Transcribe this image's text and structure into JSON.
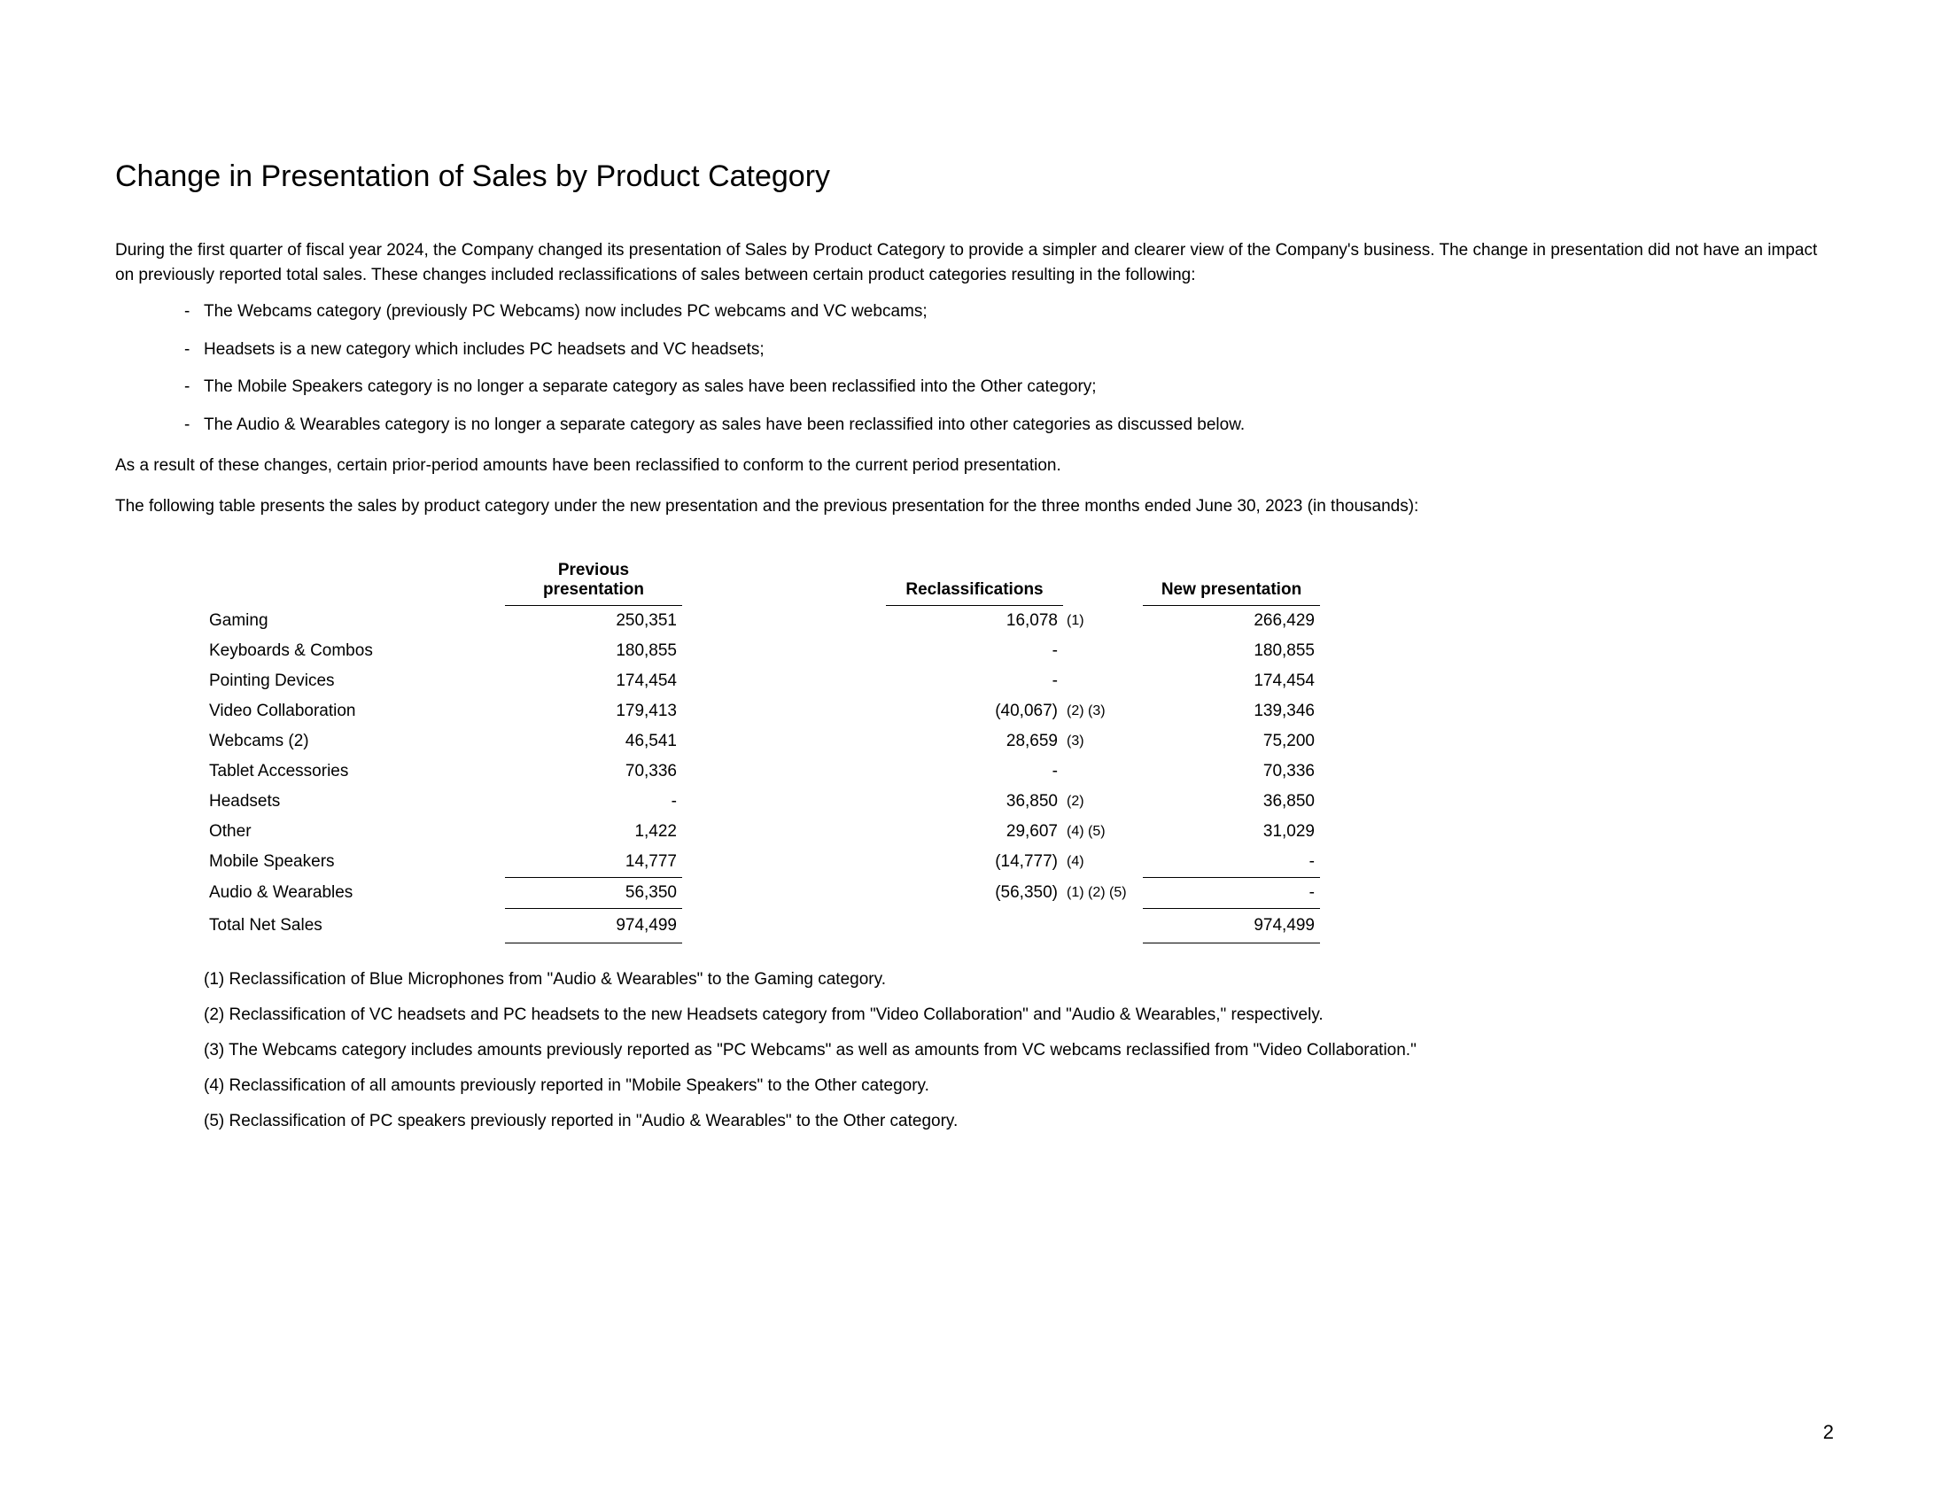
{
  "title": "Change in Presentation of Sales by Product Category",
  "intro": "During the first quarter of fiscal year 2024, the Company changed its presentation of Sales by Product Category to provide a simpler and clearer view of the Company's business. The change in presentation did not have an impact on previously reported total sales. These changes included reclassifications of sales between certain product categories resulting in the following:",
  "bullets": {
    "b1": "The Webcams category (previously PC Webcams) now includes PC webcams and VC webcams;",
    "b2": "Headsets is a new category which includes PC headsets and VC headsets;",
    "b3": "The Mobile Speakers category is no longer a separate category as sales have been reclassified into the Other category;",
    "b4": "The Audio & Wearables category is no longer a separate category as sales have been reclassified into other categories as discussed below."
  },
  "para_result": "As a result of these changes, certain prior-period amounts have been reclassified to conform to the current period presentation.",
  "para_table_intro": "The following table presents the sales by product category under the new presentation and the previous presentation for the three months ended June 30, 2023 (in thousands):",
  "table": {
    "headers": {
      "prev": "Previous presentation",
      "reclass": "Reclassifications",
      "new": "New presentation"
    },
    "rows": {
      "r0": {
        "label": "Gaming",
        "prev": "250,351",
        "reclass": "16,078",
        "refs": "(1)",
        "new": "266,429"
      },
      "r1": {
        "label": "Keyboards & Combos",
        "prev": "180,855",
        "reclass": "-",
        "refs": "",
        "new": "180,855"
      },
      "r2": {
        "label": "Pointing Devices",
        "prev": "174,454",
        "reclass": "-",
        "refs": "",
        "new": "174,454"
      },
      "r3": {
        "label": "Video Collaboration",
        "prev": "179,413",
        "reclass": "(40,067)",
        "refs": "(2) (3)",
        "new": "139,346"
      },
      "r4": {
        "label": "Webcams (2)",
        "prev": "46,541",
        "reclass": "28,659",
        "refs": "(3)",
        "new": "75,200"
      },
      "r5": {
        "label": "Tablet Accessories",
        "prev": "70,336",
        "reclass": "-",
        "refs": "",
        "new": "70,336"
      },
      "r6": {
        "label": "Headsets",
        "prev": "-",
        "reclass": "36,850",
        "refs": "(2)",
        "new": "36,850"
      },
      "r7": {
        "label": "Other",
        "prev": "1,422",
        "reclass": "29,607",
        "refs": "(4) (5)",
        "new": "31,029"
      },
      "r8": {
        "label": "Mobile Speakers",
        "prev": "14,777",
        "reclass": "(14,777)",
        "refs": "(4)",
        "new": "-"
      },
      "r9": {
        "label": "Audio & Wearables",
        "prev": "56,350",
        "reclass": "(56,350)",
        "refs": "(1) (2) (5)",
        "new": "-"
      },
      "total": {
        "label": "Total Net Sales",
        "prev": "974,499",
        "reclass": "",
        "refs": "",
        "new": "974,499"
      }
    }
  },
  "footnotes": {
    "f1": "(1) Reclassification of Blue Microphones from \"Audio & Wearables\" to the Gaming category.",
    "f2": "(2) Reclassification of VC headsets and PC headsets to the new Headsets category from \"Video Collaboration\" and \"Audio & Wearables,\" respectively.",
    "f3": "(3) The Webcams category includes amounts previously reported as \"PC Webcams\" as well as amounts from VC webcams reclassified from \"Video Collaboration.\"",
    "f4": "(4) Reclassification of all amounts previously reported in \"Mobile Speakers\" to the Other category.",
    "f5": "(5) Reclassification of PC speakers previously reported in \"Audio & Wearables\" to the Other category."
  },
  "page_number": "2"
}
